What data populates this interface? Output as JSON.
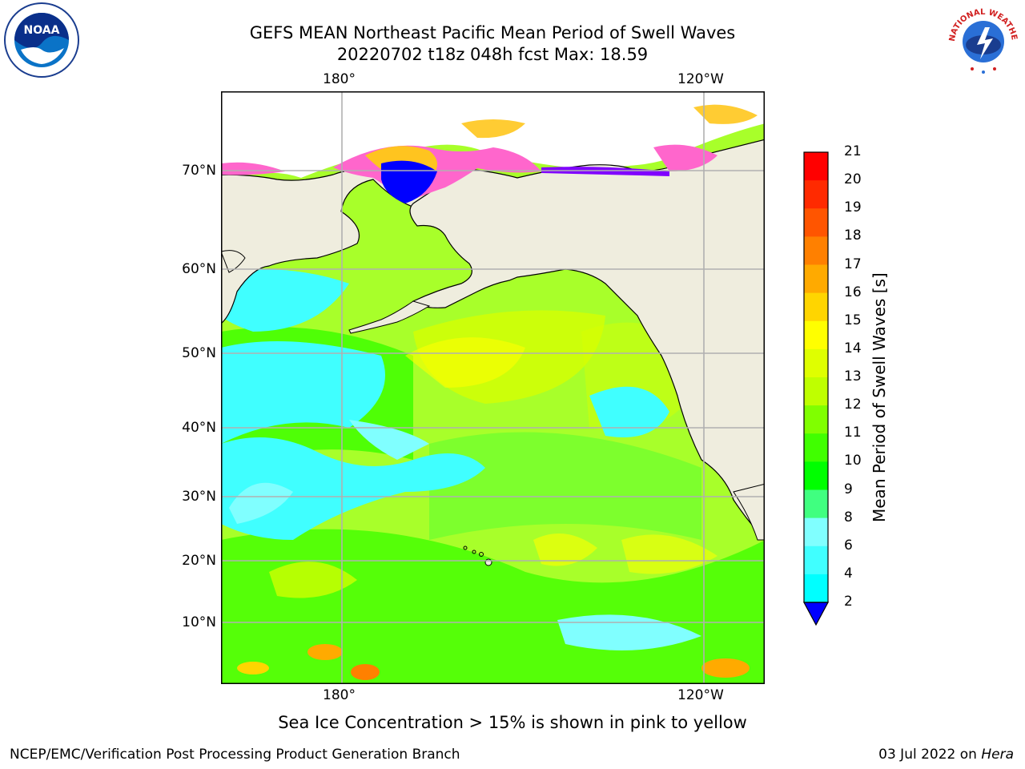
{
  "title": {
    "line1": "GEFS MEAN Northeast Pacific Mean Period of Swell Waves",
    "line2": "20220702 t18z 048h fcst   Max: 18.59"
  },
  "logos": {
    "left": "NOAA",
    "right": "NATIONAL WEATHER SERVICE"
  },
  "axes": {
    "top_lon": [
      "180°",
      "120°W"
    ],
    "bottom_lon": [
      "180°",
      "120°W"
    ],
    "lat": [
      "70°N",
      "60°N",
      "50°N",
      "40°N",
      "30°N",
      "20°N",
      "10°N"
    ]
  },
  "colorbar": {
    "title": "Mean Period of Swell Waves [s]",
    "levels": [
      "21",
      "20",
      "19",
      "18",
      "17",
      "16",
      "15",
      "14",
      "13",
      "12",
      "11",
      "10",
      "9",
      "8",
      "6",
      "4",
      "2"
    ],
    "colors": [
      "#ff0000",
      "#ff2a00",
      "#ff5500",
      "#ff8000",
      "#ffaa00",
      "#ffd500",
      "#ffff00",
      "#dfff00",
      "#bfff00",
      "#80ff00",
      "#40ff00",
      "#00ff00",
      "#40ff80",
      "#80ffff",
      "#40ffff",
      "#00ffff",
      "#0080ff"
    ],
    "extend_color": "#0000ff"
  },
  "caption": "Sea Ice Concentration > 15% is shown in pink to yellow",
  "footer": {
    "left": "NCEP/EMC/Verification Post Processing Product Generation Branch",
    "right_date": "03 Jul 2022 on ",
    "right_host": "Hera"
  },
  "colors": {
    "land": "#efedde",
    "ocean_base": "#a8ff2a",
    "grid": "#b0b0b0",
    "ice": "#ff66cc"
  }
}
